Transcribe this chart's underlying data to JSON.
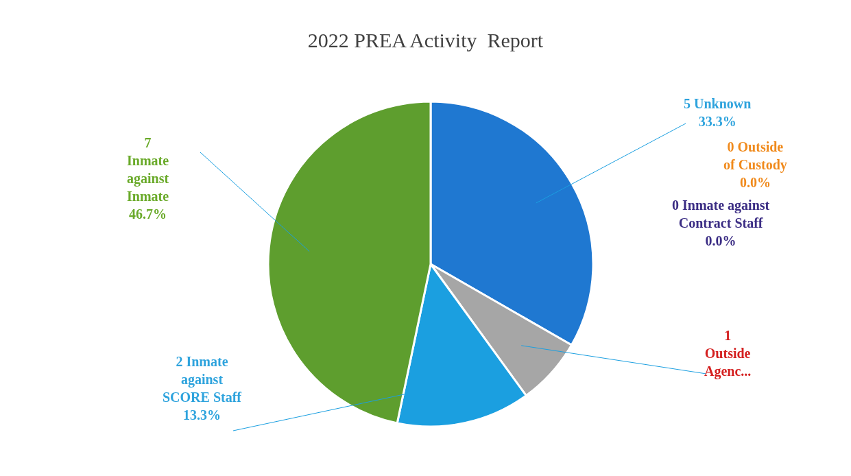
{
  "chart_data": {
    "type": "pie",
    "title": "2022 PREA Activity  Report",
    "categories": [
      "5 Unknown",
      "0 Outside of Custody",
      "0 Inmate against Contract Staff",
      "1 Outside Agenc...",
      "2 Inmate against SCORE Staff",
      "7 Inmate against Inmate"
    ],
    "values": [
      33.3,
      0,
      0,
      6.7,
      13.3,
      46.7
    ],
    "value_labels": [
      "33.3%",
      "0.0%",
      "0.0%",
      null,
      "13.3%",
      "46.7%"
    ],
    "colors": [
      "#1f78d1",
      "#f08a1c",
      "#3b2d84",
      "#a6a6a6",
      "#1b9fe0",
      "#5e9e2e"
    ],
    "legend": false
  }
}
